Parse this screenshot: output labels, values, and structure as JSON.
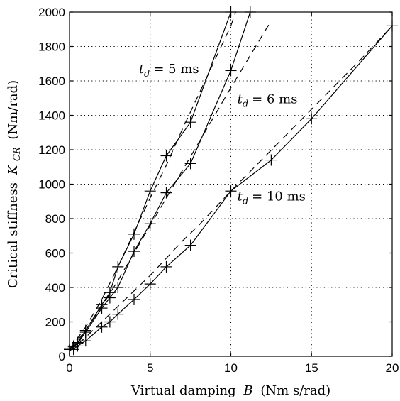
{
  "chart_data": {
    "type": "line",
    "title": "",
    "xlabel": "Virtual damping",
    "xlabel_var": "B",
    "xlabel_unit": "(Nm s/rad)",
    "ylabel": "Critical stiffness",
    "ylabel_var": "K",
    "ylabel_sub": "CR",
    "ylabel_unit": "(Nm/rad)",
    "xlim": [
      0,
      20
    ],
    "ylim": [
      0,
      2000
    ],
    "xticks": [
      0,
      5,
      10,
      15,
      20
    ],
    "yticks": [
      0,
      200,
      400,
      600,
      800,
      1000,
      1200,
      1400,
      1600,
      1800,
      2000
    ],
    "grid": true,
    "legend": "none",
    "series": [
      {
        "label_var": "t",
        "label_sub": "d",
        "label_value": "= 5 ms",
        "solid": [
          [
            0,
            40
          ],
          [
            0.25,
            60
          ],
          [
            0.5,
            80
          ],
          [
            1,
            150
          ],
          [
            2,
            300
          ],
          [
            2.5,
            370
          ],
          [
            3,
            520
          ],
          [
            4,
            710
          ],
          [
            5,
            960
          ],
          [
            6,
            1165
          ],
          [
            7.5,
            1360
          ],
          [
            10,
            2000
          ]
        ],
        "dashed": [
          [
            0,
            40
          ],
          [
            1,
            170
          ],
          [
            2,
            330
          ],
          [
            3,
            520
          ],
          [
            4,
            720
          ],
          [
            5,
            920
          ],
          [
            6,
            1110
          ],
          [
            7,
            1320
          ],
          [
            8,
            1520
          ],
          [
            9,
            1720
          ],
          [
            10,
            1920
          ],
          [
            10.3,
            2000
          ]
        ]
      },
      {
        "label_var": "t",
        "label_sub": "d",
        "label_value": "= 6 ms",
        "solid": [
          [
            0,
            40
          ],
          [
            0.25,
            55
          ],
          [
            0.5,
            75
          ],
          [
            1,
            140
          ],
          [
            2,
            280
          ],
          [
            2.5,
            340
          ],
          [
            3,
            400
          ],
          [
            4,
            610
          ],
          [
            5,
            770
          ],
          [
            6,
            950
          ],
          [
            7.5,
            1120
          ],
          [
            10,
            1660
          ],
          [
            11.2,
            2000
          ]
        ],
        "dashed": [
          [
            0,
            40
          ],
          [
            1,
            150
          ],
          [
            2,
            290
          ],
          [
            3,
            440
          ],
          [
            4,
            600
          ],
          [
            5,
            760
          ],
          [
            6,
            920
          ],
          [
            7,
            1080
          ],
          [
            8,
            1240
          ],
          [
            10,
            1560
          ],
          [
            12.5,
            1950
          ]
        ]
      },
      {
        "label_var": "t",
        "label_sub": "d",
        "label_value": "= 10 ms",
        "solid": [
          [
            0,
            40
          ],
          [
            0.25,
            40
          ],
          [
            0.5,
            60
          ],
          [
            1,
            90
          ],
          [
            2,
            170
          ],
          [
            2.5,
            200
          ],
          [
            3,
            245
          ],
          [
            4,
            330
          ],
          [
            5,
            420
          ],
          [
            6,
            520
          ],
          [
            7.5,
            645
          ],
          [
            10,
            960
          ],
          [
            12.5,
            1140
          ],
          [
            15,
            1380
          ],
          [
            20,
            1920
          ]
        ],
        "dashed": [
          [
            0,
            30
          ],
          [
            1,
            110
          ],
          [
            2,
            200
          ],
          [
            3,
            290
          ],
          [
            4,
            380
          ],
          [
            5,
            470
          ],
          [
            6,
            570
          ],
          [
            7,
            670
          ],
          [
            8,
            760
          ],
          [
            10,
            960
          ],
          [
            12,
            1150
          ],
          [
            14,
            1340
          ],
          [
            16,
            1530
          ],
          [
            18,
            1720
          ],
          [
            20,
            1920
          ]
        ]
      }
    ],
    "annotations": [
      {
        "series": 0,
        "at": [
          4.3,
          1645
        ]
      },
      {
        "series": 1,
        "at": [
          10.4,
          1470
        ]
      },
      {
        "series": 2,
        "at": [
          10.4,
          905
        ]
      }
    ]
  }
}
